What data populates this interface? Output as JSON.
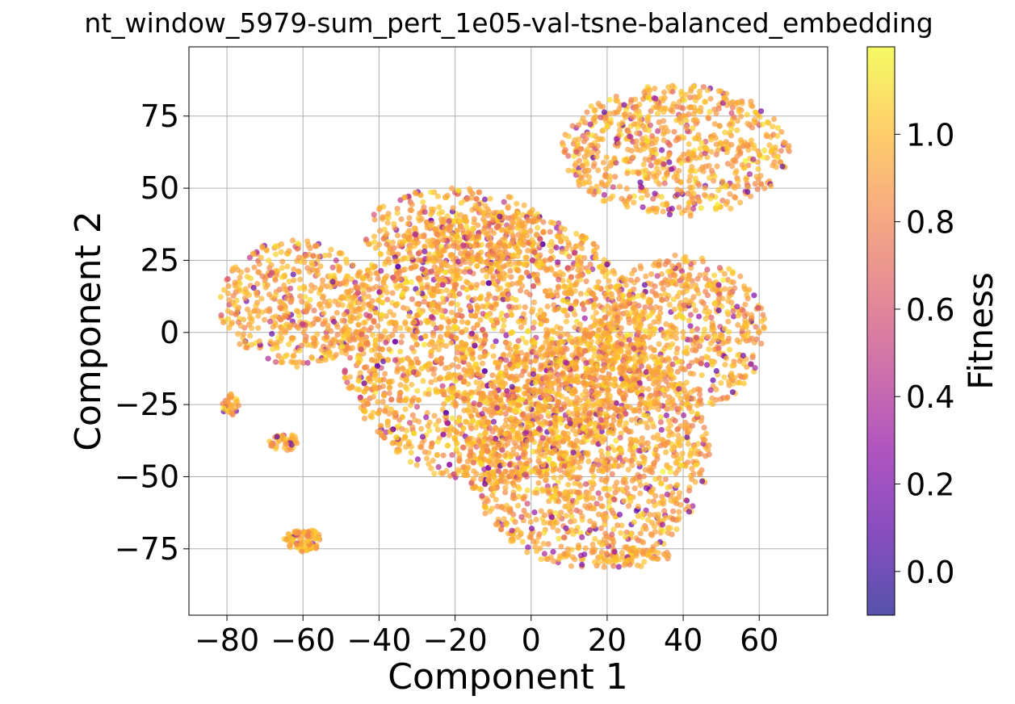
{
  "chart_data": {
    "type": "scatter",
    "title": "nt_window_5979-sum_pert_1e05-val-tsne-balanced_embedding",
    "xlabel": "Component 1",
    "ylabel": "Component 2",
    "xlim": [
      -90,
      78
    ],
    "ylim": [
      -98,
      99
    ],
    "xticks": [
      -80,
      -60,
      -40,
      -20,
      0,
      20,
      40,
      60
    ],
    "yticks": [
      -75,
      -50,
      -25,
      0,
      25,
      50,
      75
    ],
    "xtick_labels": [
      "−80",
      "−60",
      "−40",
      "−20",
      "0",
      "20",
      "40",
      "60"
    ],
    "ytick_labels": [
      "−75",
      "−50",
      "−25",
      "0",
      "25",
      "50",
      "75"
    ],
    "grid": true,
    "colormap": "plasma",
    "point_alpha": 0.7,
    "colorbar": {
      "label": "Fitness",
      "range": [
        -0.1,
        1.2
      ],
      "ticks": [
        0.0,
        0.2,
        0.4,
        0.6,
        0.8,
        1.0
      ],
      "tick_labels": [
        "0.0",
        "0.2",
        "0.4",
        "0.6",
        "0.8",
        "1.0"
      ]
    },
    "clusters": [
      {
        "shape": "ellipse",
        "cx": -10,
        "cy": -5,
        "rx": 40,
        "ry": 48,
        "count": 2600
      },
      {
        "shape": "ellipse",
        "cx": 15,
        "cy": -42,
        "rx": 32,
        "ry": 40,
        "count": 1500
      },
      {
        "shape": "ellipse",
        "cx": -62,
        "cy": 10,
        "rx": 20,
        "ry": 22,
        "count": 500
      },
      {
        "shape": "ellipse",
        "cx": 40,
        "cy": 0,
        "rx": 22,
        "ry": 27,
        "count": 650
      },
      {
        "shape": "ellipse",
        "cx": 38,
        "cy": 63,
        "rx": 30,
        "ry": 23,
        "count": 750
      },
      {
        "shape": "ellipse",
        "cx": -20,
        "cy": 35,
        "rx": 24,
        "ry": 15,
        "count": 350
      },
      {
        "shape": "ellipse",
        "cx": -60,
        "cy": -72,
        "rx": 5,
        "ry": 4,
        "count": 90
      },
      {
        "shape": "ellipse",
        "cx": -79,
        "cy": -25,
        "rx": 2.5,
        "ry": 4,
        "count": 30
      },
      {
        "shape": "ellipse",
        "cx": -65,
        "cy": -38,
        "rx": 4,
        "ry": 3,
        "count": 40
      },
      {
        "shape": "ellipse",
        "cx": 28,
        "cy": -78,
        "rx": 10,
        "ry": 4,
        "count": 60
      }
    ],
    "fitness_distribution": {
      "mode": 0.95,
      "low_fraction": 0.12,
      "low_range": [
        0.1,
        0.7
      ]
    }
  }
}
